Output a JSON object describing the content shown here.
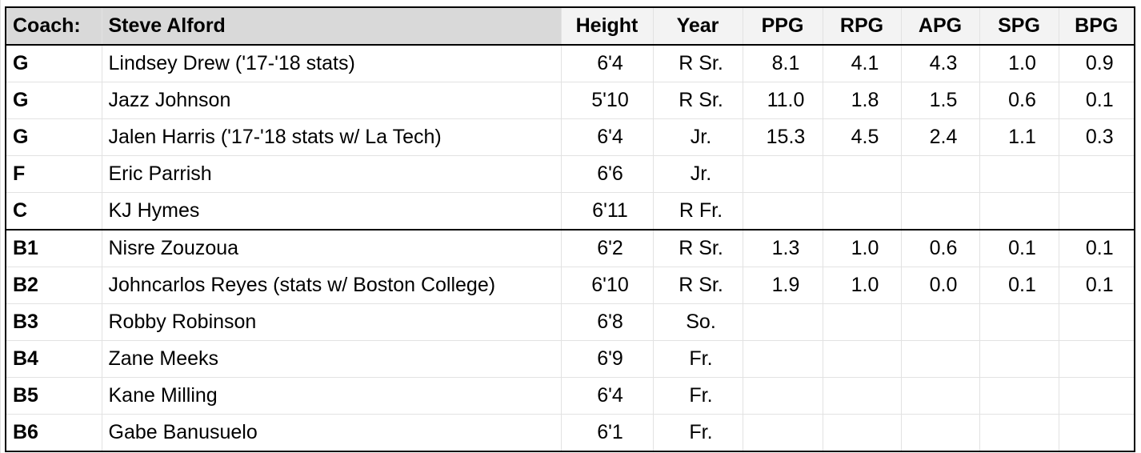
{
  "header": {
    "pos": "Coach:",
    "coach": "Steve Alford",
    "height": "Height",
    "year": "Year",
    "ppg": "PPG",
    "rpg": "RPG",
    "apg": "APG",
    "spg": "SPG",
    "bpg": "BPG"
  },
  "rows": [
    {
      "pos": "G",
      "name": "Lindsey Drew ('17-'18 stats)",
      "height": "6'4",
      "year": "R Sr.",
      "ppg": "8.1",
      "rpg": "4.1",
      "apg": "4.3",
      "spg": "1.0",
      "bpg": "0.9"
    },
    {
      "pos": "G",
      "name": "Jazz Johnson",
      "height": "5'10",
      "year": "R Sr.",
      "ppg": "11.0",
      "rpg": "1.8",
      "apg": "1.5",
      "spg": "0.6",
      "bpg": "0.1"
    },
    {
      "pos": "G",
      "name": "Jalen Harris ('17-'18 stats w/ La Tech)",
      "height": "6'4",
      "year": "Jr.",
      "ppg": "15.3",
      "rpg": "4.5",
      "apg": "2.4",
      "spg": "1.1",
      "bpg": "0.3"
    },
    {
      "pos": "F",
      "name": "Eric Parrish",
      "height": "6'6",
      "year": "Jr.",
      "ppg": "",
      "rpg": "",
      "apg": "",
      "spg": "",
      "bpg": ""
    },
    {
      "pos": "C",
      "name": "KJ Hymes",
      "height": "6'11",
      "year": "R Fr.",
      "ppg": "",
      "rpg": "",
      "apg": "",
      "spg": "",
      "bpg": ""
    },
    {
      "pos": "B1",
      "name": "Nisre Zouzoua",
      "height": "6'2",
      "year": "R Sr.",
      "ppg": "1.3",
      "rpg": "1.0",
      "apg": "0.6",
      "spg": "0.1",
      "bpg": "0.1"
    },
    {
      "pos": "B2",
      "name": "Johncarlos Reyes (stats w/ Boston College)",
      "height": "6'10",
      "year": "R Sr.",
      "ppg": "1.9",
      "rpg": "1.0",
      "apg": "0.0",
      "spg": "0.1",
      "bpg": "0.1"
    },
    {
      "pos": "B3",
      "name": "Robby Robinson",
      "height": "6'8",
      "year": "So.",
      "ppg": "",
      "rpg": "",
      "apg": "",
      "spg": "",
      "bpg": ""
    },
    {
      "pos": "B4",
      "name": "Zane Meeks",
      "height": "6'9",
      "year": "Fr.",
      "ppg": "",
      "rpg": "",
      "apg": "",
      "spg": "",
      "bpg": ""
    },
    {
      "pos": "B5",
      "name": "Kane Milling",
      "height": "6'4",
      "year": "Fr.",
      "ppg": "",
      "rpg": "",
      "apg": "",
      "spg": "",
      "bpg": ""
    },
    {
      "pos": "B6",
      "name": "Gabe Banusuelo",
      "height": "6'1",
      "year": "Fr.",
      "ppg": "",
      "rpg": "",
      "apg": "",
      "spg": "",
      "bpg": ""
    }
  ],
  "colors": {
    "header_label_bg": "#d9d9d9",
    "header_bg": "#f3f3f3",
    "gridline": "#e2e2e2",
    "border": "#000000"
  }
}
